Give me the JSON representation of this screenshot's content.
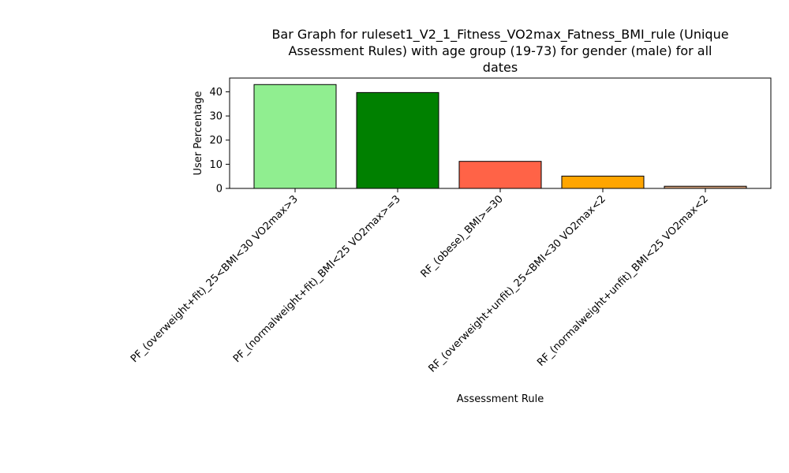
{
  "chart_data": {
    "type": "bar",
    "title_lines": [
      "Bar Graph for ruleset1_V2_1_Fitness_VO2max_Fatness_BMI_rule (Unique",
      "Assessment Rules) with age group (19-73) for gender (male) for all",
      "dates"
    ],
    "xlabel": "Assessment Rule",
    "ylabel": "User Percentage",
    "categories": [
      "PF_(overweight+fit)_25<BMI<30 VO2max>3",
      "PF_(normalweight+fit)_BMI<25 VO2max>=3",
      "RF_(obese)_BMI>=30",
      "RF_(overweight+unfit)_25<BMI<30 VO2max<2",
      "RF_(normalweight+unfit)_BMI<25 VO2max<2"
    ],
    "values": [
      43.0,
      39.7,
      11.2,
      5.1,
      0.9
    ],
    "colors": [
      "#90ee90",
      "#008000",
      "#ff6347",
      "#ffa500",
      "#d2a07a"
    ],
    "ylim": [
      0,
      45.7
    ],
    "yticks": [
      0,
      10,
      20,
      30,
      40
    ],
    "grid": false,
    "legend": "none"
  }
}
